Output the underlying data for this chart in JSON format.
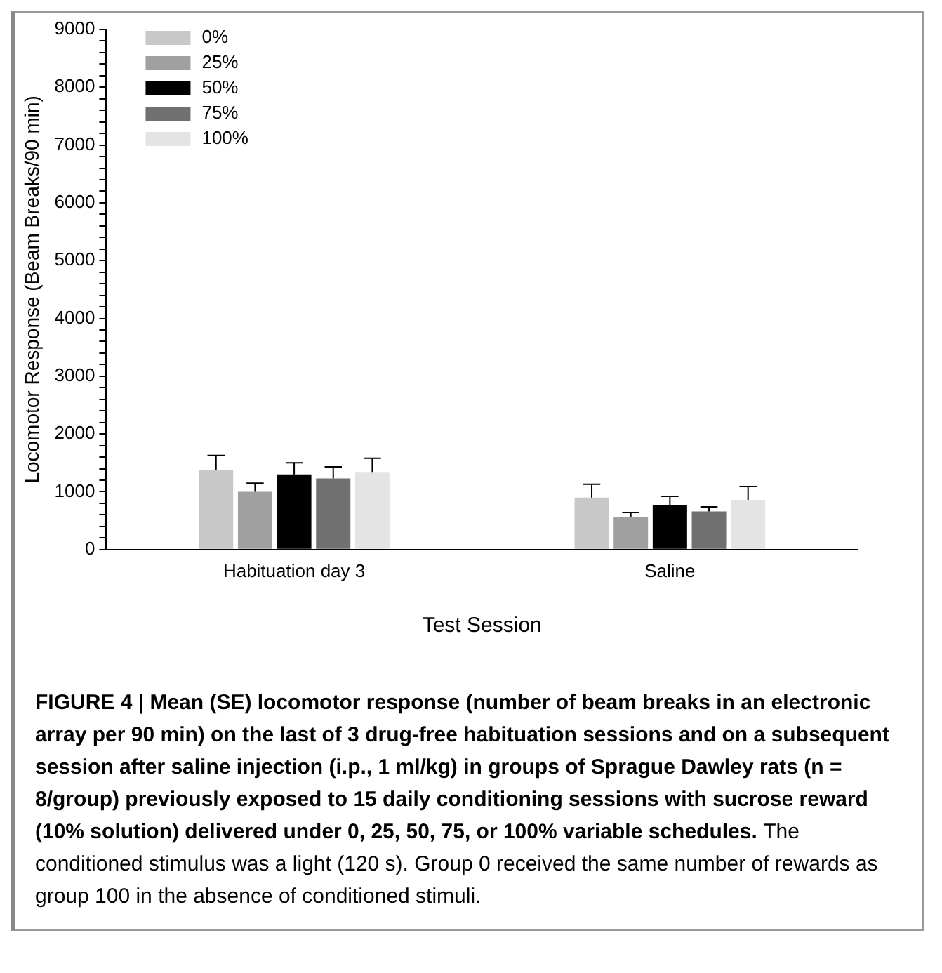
{
  "chart_data": {
    "type": "bar",
    "xlabel": "Test Session",
    "ylabel": "Locomotor Response (Beam Breaks/90 min)",
    "categories": [
      "Habituation day 3",
      "Saline"
    ],
    "series": [
      {
        "name": "0%",
        "color": "#c8c8c8",
        "values": [
          1380,
          900
        ],
        "errors": [
          [
            1380,
            1630
          ],
          [
            900,
            1130
          ]
        ]
      },
      {
        "name": "25%",
        "color": "#a0a0a0",
        "values": [
          1000,
          560
        ],
        "errors": [
          [
            1000,
            1150
          ],
          [
            560,
            640
          ]
        ]
      },
      {
        "name": "50%",
        "color": "#000000",
        "values": [
          1300,
          770
        ],
        "errors": [
          [
            1300,
            1500
          ],
          [
            770,
            920
          ]
        ]
      },
      {
        "name": "75%",
        "color": "#707070",
        "values": [
          1230,
          660
        ],
        "errors": [
          [
            1230,
            1430
          ],
          [
            660,
            740
          ]
        ]
      },
      {
        "name": "100%",
        "color": "#e4e4e4",
        "values": [
          1330,
          860
        ],
        "errors": [
          [
            1330,
            1580
          ],
          [
            860,
            1090
          ]
        ]
      }
    ],
    "ylim": [
      0,
      9000
    ],
    "yticks": [
      0,
      {
        "value": 200,
        "label": null
      },
      {
        "value": 400,
        "label": null
      },
      {
        "value": 600,
        "label": null
      },
      {
        "value": 800,
        "label": null
      },
      1000,
      {
        "value": 1200,
        "label": null
      },
      {
        "value": 1400,
        "label": null
      },
      {
        "value": 1600,
        "label": null
      },
      {
        "value": 1800,
        "label": null
      },
      2000,
      {
        "value": 2200,
        "label": null
      },
      {
        "value": 2400,
        "label": null
      },
      {
        "value": 2600,
        "label": null
      },
      {
        "value": 2800,
        "label": null
      },
      3000,
      {
        "value": 3200,
        "label": null
      },
      {
        "value": 3400,
        "label": null
      },
      {
        "value": 3600,
        "label": null
      },
      {
        "value": 3800,
        "label": null
      },
      4000,
      {
        "value": 4200,
        "label": null
      },
      {
        "value": 4400,
        "label": null
      },
      {
        "value": 4600,
        "label": null
      },
      {
        "value": 4800,
        "label": null
      },
      5000,
      {
        "value": 5200,
        "label": null
      },
      {
        "value": 5400,
        "label": null
      },
      {
        "value": 5600,
        "label": null
      },
      {
        "value": 5800,
        "label": null
      },
      6000,
      {
        "value": 6200,
        "label": null
      },
      {
        "value": 6400,
        "label": null
      },
      {
        "value": 6600,
        "label": null
      },
      {
        "value": 6800,
        "label": null
      },
      7000,
      {
        "value": 7200,
        "label": null
      },
      {
        "value": 7400,
        "label": null
      },
      {
        "value": 7600,
        "label": null
      },
      {
        "value": 7800,
        "label": null
      },
      8000,
      {
        "value": 8200,
        "label": null
      },
      {
        "value": 8400,
        "label": null
      },
      {
        "value": 8600,
        "label": null
      },
      {
        "value": 8800,
        "label": null
      },
      9000
    ],
    "grid": false,
    "legend": "top left",
    "annotations": [
      "FIGURE 4 | Mean (SE) locomotor response (number of beam breaks in an electronic array per 90 min) on the last of 3 drug-free habituation sessions and on a subsequent session after saline injection (i.p., 1 ml/kg) in groups of Sprague Dawley rats (n = 8/group) previously exposed to 15 daily conditioning sessions with sucrose reward (10% solution) delivered under 0, 25, 50, 75, or 100% variable schedules.",
      "The conditioned stimulus was a light (120 s). Group 0 received the same number of rewards as group 100 in the absence of conditioned stimuli."
    ]
  }
}
